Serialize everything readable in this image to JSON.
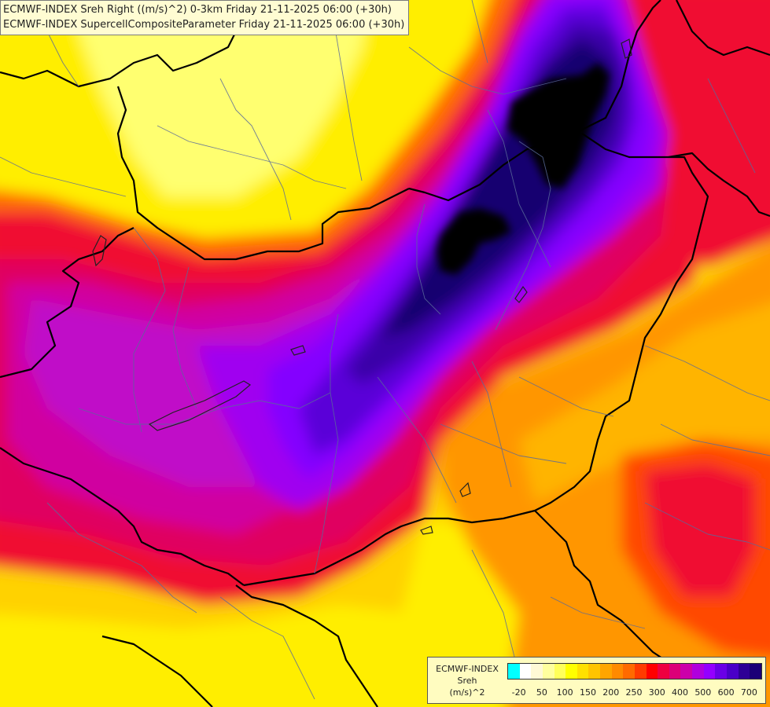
{
  "titles": {
    "line1": "ECMWF-INDEX Sreh Right ((m/s)^2) 0-3km Friday 21-11-2025 06:00 (+30h)",
    "line2": "ECMWF-INDEX SupercellCompositeParameter Friday 21-11-2025 06:00 (+30h)"
  },
  "legend": {
    "source": "ECMWF-INDEX",
    "variable": "Sreh",
    "unit": "(m/s)^2",
    "swatches": [
      "#00ffff",
      "#ffffff",
      "#fff9d6",
      "#ffff9e",
      "#ffff5a",
      "#ffff00",
      "#ffe000",
      "#ffc400",
      "#ffa500",
      "#ff8a00",
      "#ff6a00",
      "#ff3b00",
      "#ff0000",
      "#ee0040",
      "#dc0078",
      "#cc00aa",
      "#b000dd",
      "#9400ff",
      "#6a00e6",
      "#4a00c8",
      "#2e0096",
      "#1b0077"
    ],
    "ticks": [
      {
        "label": "-20",
        "index": 1
      },
      {
        "label": "50",
        "index": 3
      },
      {
        "label": "100",
        "index": 5
      },
      {
        "label": "150",
        "index": 7
      },
      {
        "label": "200",
        "index": 9
      },
      {
        "label": "250",
        "index": 11
      },
      {
        "label": "300",
        "index": 13
      },
      {
        "label": "400",
        "index": 15
      },
      {
        "label": "500",
        "index": 17
      },
      {
        "label": "600",
        "index": 19
      },
      {
        "label": "700",
        "index": 21
      }
    ]
  },
  "field_colors": {
    "yellow_light": "#ffff70",
    "yellow": "#ffee00",
    "gold": "#ffd200",
    "amber": "#ffb400",
    "orange": "#ff9600",
    "orange_red": "#ff6a00",
    "red_orange": "#ff4a00",
    "red": "#f01030",
    "crimson": "#e00060",
    "magenta": "#d000a0",
    "magenta_purple": "#c010c8",
    "violet": "#a000f0",
    "purple": "#8400ff",
    "blue_violet": "#5a00d8",
    "indigo": "#3a00a8",
    "navy": "#180070",
    "black": "#000000"
  }
}
